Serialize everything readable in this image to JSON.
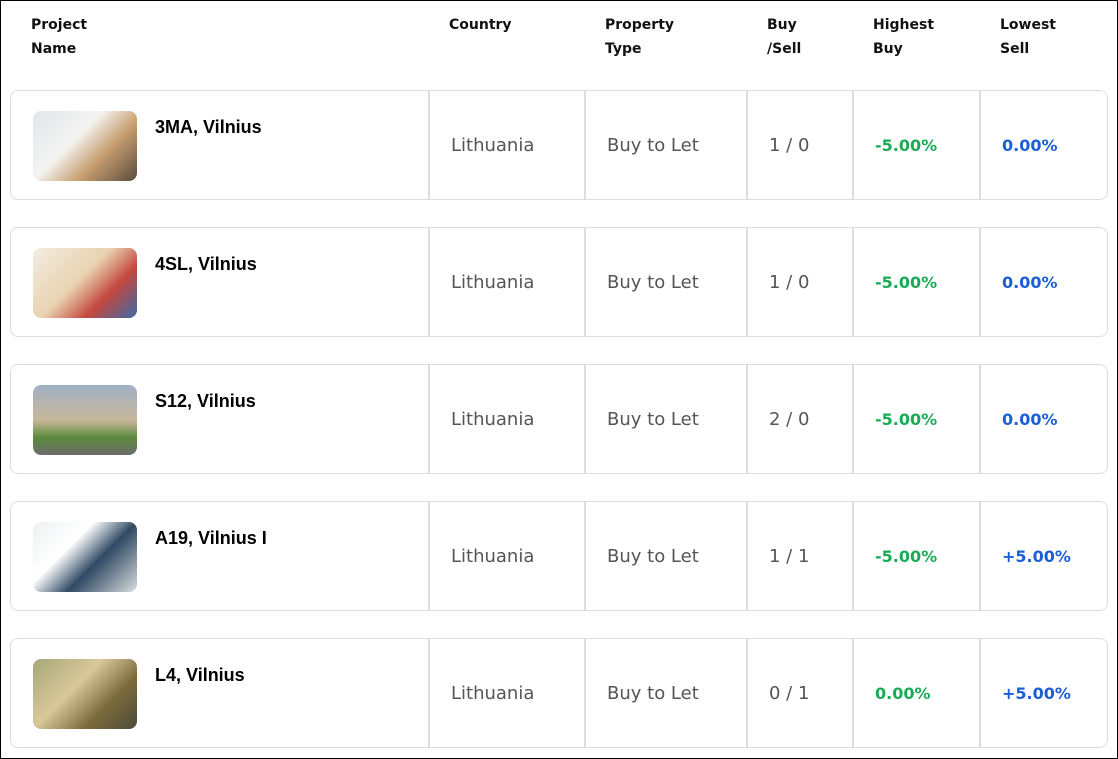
{
  "table": {
    "headers": [
      "Project\nName",
      "Country",
      "Property\nType",
      "Buy\n/Sell",
      "Highest\nBuy",
      "Lowest\nSell"
    ],
    "rows": [
      [
        "3MA, Vilnius",
        "Lithuania",
        "Buy to Let",
        "1 / 0",
        "-5.00%",
        "0.00%"
      ],
      [
        "4SL, Vilnius",
        "Lithuania",
        "Buy to Let",
        "1 / 0",
        "-5.00%",
        "0.00%"
      ],
      [
        "S12, Vilnius",
        "Lithuania",
        "Buy to Let",
        "2 / 0",
        "-5.00%",
        "0.00%"
      ],
      [
        "A19, Vilnius I",
        "Lithuania",
        "Buy to Let",
        "1 / 1",
        "-5.00%",
        "+5.00%"
      ],
      [
        "L4, Vilnius",
        "Lithuania",
        "Buy to Let",
        "0 / 1",
        "0.00%",
        "+5.00%"
      ]
    ]
  }
}
